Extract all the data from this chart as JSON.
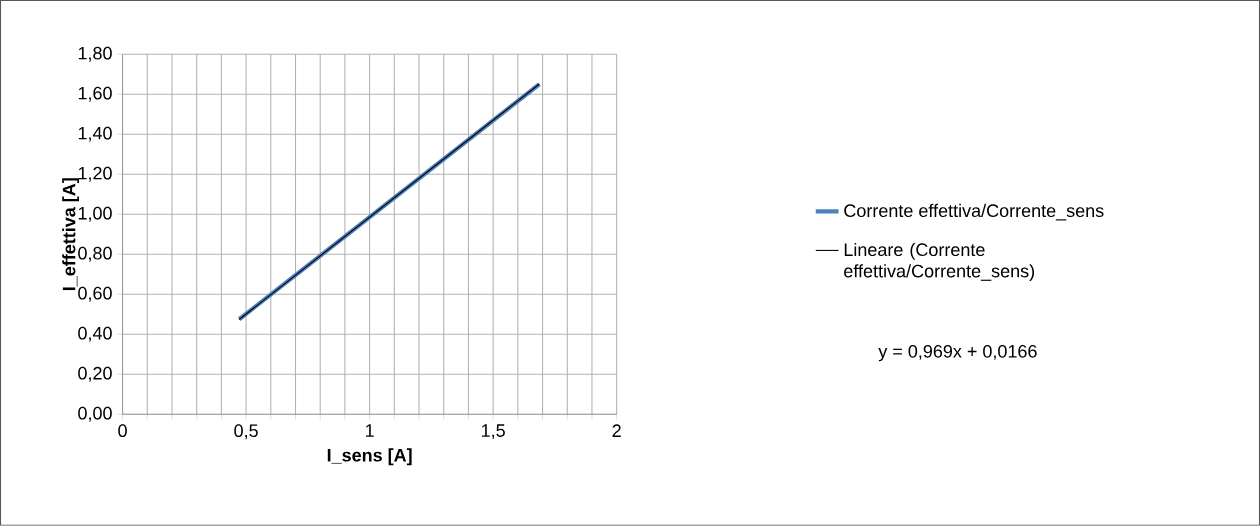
{
  "chart_data": {
    "type": "line",
    "xlabel": "I_sens [A]",
    "ylabel": "I_effettiva [A]",
    "xlim": [
      0,
      2
    ],
    "ylim": [
      0,
      1.8
    ],
    "xticks": [
      0,
      {
        "value": 0.1,
        "label": null
      },
      {
        "value": 0.2,
        "label": null
      },
      {
        "value": 0.3,
        "label": null
      },
      {
        "value": 0.4,
        "label": null
      },
      {
        "value": 0.5,
        "label": "0,5"
      },
      {
        "value": 0.6,
        "label": null
      },
      {
        "value": 0.7,
        "label": null
      },
      {
        "value": 0.8,
        "label": null
      },
      {
        "value": 0.9,
        "label": null
      },
      1,
      {
        "value": 1.1,
        "label": null
      },
      {
        "value": 1.2,
        "label": null
      },
      {
        "value": 1.3,
        "label": null
      },
      {
        "value": 1.4,
        "label": null
      },
      {
        "value": 1.5,
        "label": "1,5"
      },
      {
        "value": 1.6,
        "label": null
      },
      {
        "value": 1.7,
        "label": null
      },
      {
        "value": 1.8,
        "label": null
      },
      {
        "value": 1.9,
        "label": null
      },
      2
    ],
    "yticks": [
      {
        "value": 0,
        "label": "0,00"
      },
      {
        "value": 0.2,
        "label": "0,20"
      },
      {
        "value": 0.4,
        "label": "0,40"
      },
      {
        "value": 0.6,
        "label": "0,60"
      },
      {
        "value": 0.8,
        "label": "0,80"
      },
      {
        "value": 1,
        "label": "1,00"
      },
      {
        "value": 1.2,
        "label": "1,20"
      },
      {
        "value": 1.4,
        "label": "1,40"
      },
      {
        "value": 1.6,
        "label": "1,60"
      },
      {
        "value": 1.8,
        "label": "1,80"
      }
    ],
    "grid": true,
    "legend": "right",
    "marker": "none",
    "line_style": "solid",
    "x": [
      0.472,
      1.687
    ],
    "series": [
      {
        "name": "Corrente effettiva/Corrente_sens",
        "color": "#4f81bd",
        "values": [
          0.475,
          1.65
        ]
      },
      {
        "name": "Lineare (Corrente effettiva/Corrente_sens)",
        "type": "line",
        "color": "#000000",
        "x": [
          0.472,
          1.687
        ],
        "values": [
          0.474,
          1.651
        ]
      }
    ],
    "annotations": [
      "y = 0,969x + 0,0166"
    ]
  }
}
